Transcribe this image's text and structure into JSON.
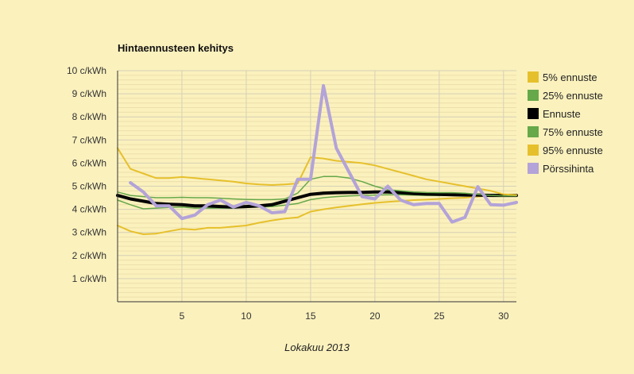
{
  "chart_data": {
    "type": "line",
    "title": "Hintaennusteen kehitys",
    "xlabel": "Lokakuu 2013",
    "ylabel": "",
    "xlim": [
      0,
      31
    ],
    "ylim": [
      0,
      10
    ],
    "x_ticks": [
      5,
      10,
      15,
      20,
      25,
      30
    ],
    "y_ticks": [
      1,
      2,
      3,
      4,
      5,
      6,
      7,
      8,
      9,
      10
    ],
    "y_tick_labels": [
      "1 c/kWh",
      "2 c/kWh",
      "3 c/kWh",
      "4 c/kWh",
      "5 c/kWh",
      "6 c/kWh",
      "7 c/kWh",
      "8 c/kWh",
      "9 c/kWh",
      "10 c/kWh"
    ],
    "grid": true,
    "legend_position": "right",
    "series": [
      {
        "name": "5% ennuste",
        "color": "#e6c02c",
        "width": 2,
        "x": [
          0,
          1,
          2,
          3,
          4,
          5,
          6,
          7,
          8,
          9,
          10,
          11,
          12,
          13,
          14,
          15,
          16,
          17,
          18,
          19,
          20,
          21,
          22,
          23,
          24,
          25,
          26,
          27,
          28,
          29,
          30,
          31
        ],
        "y": [
          3.3,
          3.05,
          2.92,
          2.95,
          3.05,
          3.15,
          3.12,
          3.2,
          3.2,
          3.25,
          3.3,
          3.42,
          3.52,
          3.6,
          3.65,
          3.9,
          4.0,
          4.08,
          4.15,
          4.22,
          4.28,
          4.32,
          4.36,
          4.4,
          4.42,
          4.45,
          4.48,
          4.5,
          4.55,
          4.6,
          4.62,
          4.62
        ]
      },
      {
        "name": "25% ennuste",
        "color": "#66a84a",
        "width": 1.5,
        "x": [
          0,
          1,
          2,
          3,
          4,
          5,
          6,
          7,
          8,
          9,
          10,
          11,
          12,
          13,
          14,
          15,
          16,
          17,
          18,
          19,
          20,
          21,
          22,
          23,
          24,
          25,
          26,
          27,
          28,
          29,
          30,
          31
        ],
        "y": [
          4.4,
          4.2,
          4.02,
          4.05,
          4.08,
          4.1,
          4.05,
          4.05,
          4.05,
          4.05,
          4.08,
          4.1,
          4.12,
          4.18,
          4.25,
          4.42,
          4.5,
          4.55,
          4.58,
          4.6,
          4.62,
          4.63,
          4.63,
          4.62,
          4.6,
          4.6,
          4.6,
          4.6,
          4.6,
          4.58,
          4.58,
          4.58
        ]
      },
      {
        "name": "Ennuste",
        "color": "#000000",
        "width": 4,
        "x": [
          0,
          1,
          2,
          3,
          4,
          5,
          6,
          7,
          8,
          9,
          10,
          11,
          12,
          13,
          14,
          15,
          16,
          17,
          18,
          19,
          20,
          21,
          22,
          23,
          24,
          25,
          26,
          27,
          28,
          29,
          30,
          31
        ],
        "y": [
          4.6,
          4.45,
          4.35,
          4.25,
          4.22,
          4.2,
          4.15,
          4.15,
          4.12,
          4.1,
          4.12,
          4.15,
          4.2,
          4.35,
          4.5,
          4.65,
          4.7,
          4.72,
          4.73,
          4.73,
          4.75,
          4.75,
          4.72,
          4.68,
          4.66,
          4.65,
          4.63,
          4.62,
          4.62,
          4.6,
          4.6,
          4.6
        ]
      },
      {
        "name": "75% ennuste",
        "color": "#66a84a",
        "width": 1.5,
        "x": [
          0,
          1,
          2,
          3,
          4,
          5,
          6,
          7,
          8,
          9,
          10,
          11,
          12,
          13,
          14,
          15,
          16,
          17,
          18,
          19,
          20,
          21,
          22,
          23,
          24,
          25,
          26,
          27,
          28,
          29,
          30,
          31
        ],
        "y": [
          4.75,
          4.6,
          4.55,
          4.5,
          4.5,
          4.52,
          4.5,
          4.5,
          4.48,
          4.45,
          4.43,
          4.42,
          4.42,
          4.45,
          4.7,
          5.3,
          5.42,
          5.42,
          5.35,
          5.2,
          5.0,
          4.85,
          4.8,
          4.75,
          4.73,
          4.72,
          4.72,
          4.7,
          4.65,
          4.6,
          4.58,
          4.58
        ]
      },
      {
        "name": "95% ennuste",
        "color": "#e6c02c",
        "width": 2,
        "x": [
          0,
          1,
          2,
          3,
          4,
          5,
          6,
          7,
          8,
          9,
          10,
          11,
          12,
          13,
          14,
          15,
          16,
          17,
          18,
          19,
          20,
          21,
          22,
          23,
          24,
          25,
          26,
          27,
          28,
          29,
          30,
          31
        ],
        "y": [
          6.65,
          5.75,
          5.55,
          5.35,
          5.35,
          5.4,
          5.35,
          5.3,
          5.25,
          5.2,
          5.12,
          5.08,
          5.05,
          5.08,
          5.12,
          6.25,
          6.2,
          6.1,
          6.05,
          6.0,
          5.9,
          5.75,
          5.6,
          5.45,
          5.3,
          5.2,
          5.1,
          5.0,
          4.9,
          4.8,
          4.65,
          4.62
        ]
      },
      {
        "name": "Pörssihinta",
        "color": "#b3a3d8",
        "width": 4,
        "x": [
          1,
          2,
          3,
          4,
          5,
          6,
          7,
          8,
          9,
          10,
          11,
          12,
          13,
          14,
          15,
          16,
          17,
          18,
          19,
          20,
          21,
          22,
          23,
          24,
          25,
          26,
          27,
          28,
          29,
          30,
          31
        ],
        "y": [
          5.15,
          4.75,
          4.15,
          4.15,
          3.6,
          3.75,
          4.2,
          4.4,
          4.1,
          4.3,
          4.15,
          3.85,
          3.9,
          5.3,
          5.3,
          9.35,
          6.65,
          5.6,
          4.55,
          4.45,
          5.0,
          4.4,
          4.2,
          4.25,
          4.25,
          3.45,
          3.65,
          4.98,
          4.2,
          4.18,
          4.3
        ]
      }
    ]
  }
}
